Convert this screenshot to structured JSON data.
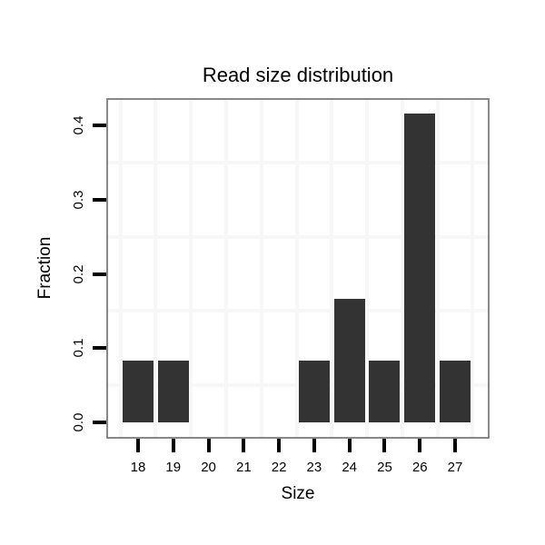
{
  "figure": {
    "background": "#ffffff"
  },
  "chart_data": {
    "type": "bar",
    "title": "Read size distribution",
    "xlabel": "Size",
    "ylabel": "Fraction",
    "categories": [
      18,
      19,
      20,
      21,
      22,
      23,
      24,
      25,
      26,
      27
    ],
    "values": [
      0.0833,
      0.0833,
      0,
      0,
      0,
      0.0833,
      0.1667,
      0.0833,
      0.4167,
      0.0833
    ],
    "x_ticks": [
      "18",
      "19",
      "20",
      "21",
      "22",
      "23",
      "24",
      "25",
      "26",
      "27"
    ],
    "y_ticks": [
      "0.0",
      "0.1",
      "0.2",
      "0.3",
      "0.4"
    ],
    "y_tick_values": [
      0.0,
      0.1,
      0.2,
      0.3,
      0.4
    ],
    "ylim": [
      -0.021,
      0.438
    ],
    "xlim": [
      17.15,
      27.85
    ],
    "grid": {
      "on": true,
      "x_minor": [
        17.5,
        18.5,
        19.5,
        20.5,
        21.5,
        22.5,
        23.5,
        24.5,
        25.5,
        26.5,
        27.5
      ],
      "y_minor": [
        0.05,
        0.15,
        0.25,
        0.35
      ]
    },
    "legend_position": "none",
    "bar_color": "#333333",
    "grid_color": "#f7f7f7",
    "border_color": "#888888",
    "tick_color": "#000000",
    "text_color": "#000000",
    "y_tick_label_rotation_deg": -90
  }
}
